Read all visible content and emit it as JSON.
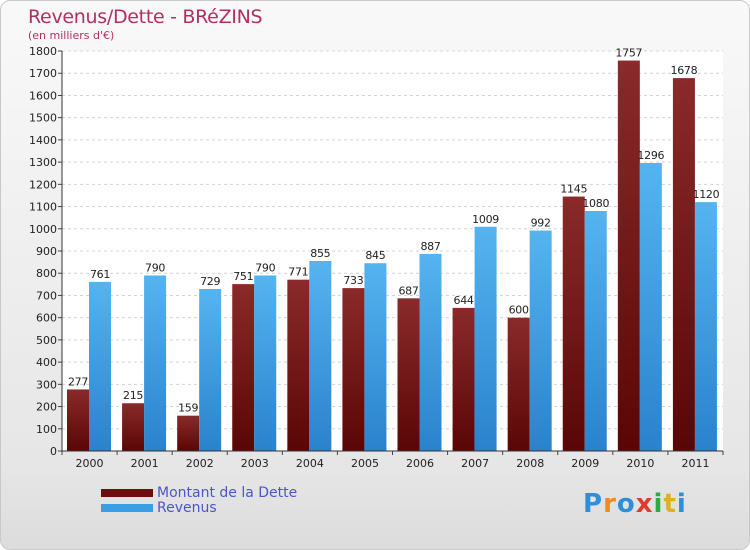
{
  "chart_data": {
    "type": "bar",
    "title": "Revenus/Dette - BRéZINS",
    "subtitle": "(en milliers d'€)",
    "xlabel": "",
    "ylabel": "",
    "ylim": [
      0,
      1800
    ],
    "yticks": [
      0,
      100,
      200,
      300,
      400,
      500,
      600,
      700,
      800,
      900,
      1000,
      1100,
      1200,
      1300,
      1400,
      1500,
      1600,
      1700,
      1800
    ],
    "grid": true,
    "legend_position": "bottom-left",
    "categories": [
      "2000",
      "2001",
      "2002",
      "2003",
      "2004",
      "2005",
      "2006",
      "2007",
      "2008",
      "2009",
      "2010",
      "2011"
    ],
    "series": [
      {
        "name": "Montant de la Dette",
        "color": "#7a1a1a",
        "values": [
          277,
          215,
          159,
          751,
          771,
          733,
          687,
          644,
          600,
          1145,
          1757,
          1678
        ]
      },
      {
        "name": "Revenus",
        "color": "#3a9ee6",
        "values": [
          761,
          790,
          729,
          790,
          855,
          845,
          887,
          1009,
          992,
          1080,
          1296,
          1120
        ]
      }
    ]
  },
  "legend": {
    "items": [
      {
        "label": "Montant de la Dette",
        "color": "#6b0f0f"
      },
      {
        "label": "Revenus",
        "color": "#3a9ee6"
      }
    ]
  },
  "logo": {
    "letters": [
      "P",
      "r",
      "o",
      "x",
      "i",
      "t",
      "i"
    ],
    "colors": [
      "#2e8fd8",
      "#f08a1c",
      "#2e8fd8",
      "#e03a2e",
      "#2eaa3e",
      "#e0b020",
      "#2e8fd8"
    ]
  }
}
